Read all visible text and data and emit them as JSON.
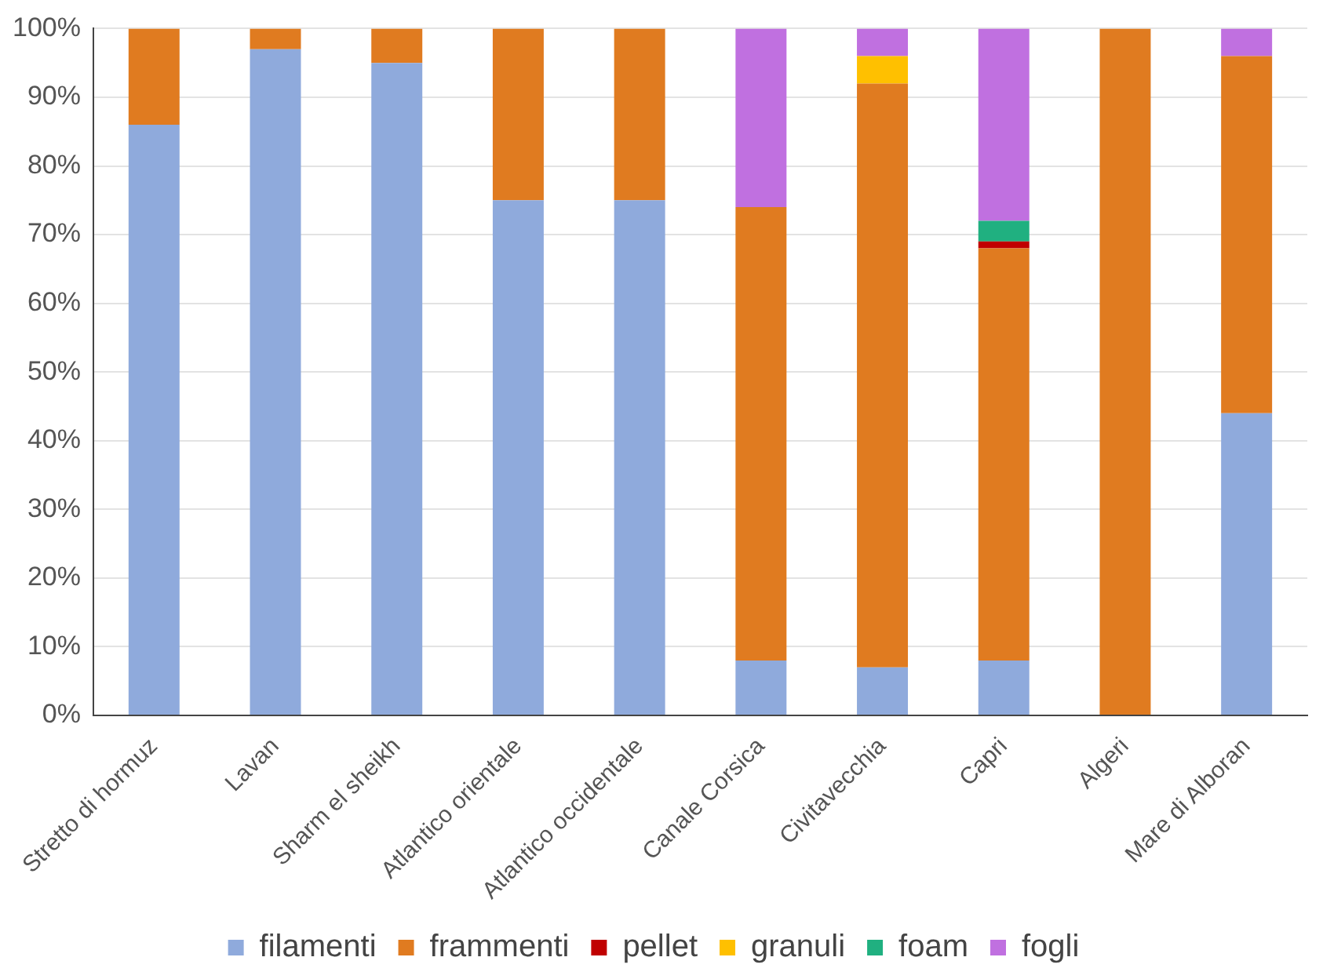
{
  "chart_data": {
    "type": "bar",
    "stacked": true,
    "categories": [
      "Stretto di hormuz",
      "Lavan",
      "Sharm el sheikh",
      "Atlantico orientale",
      "Atlantico occidentale",
      "Canale Corsica",
      "Civitavecchia",
      "Capri",
      "Algeri",
      "Mare di Alboran"
    ],
    "series": [
      {
        "name": "filamenti",
        "color": "#8faadc",
        "values": [
          86,
          97,
          95,
          75,
          75,
          8,
          7,
          8,
          0,
          44
        ]
      },
      {
        "name": "frammenti",
        "color": "#e07b20",
        "values": [
          14,
          3,
          5,
          25,
          25,
          66,
          85,
          60,
          100,
          52
        ]
      },
      {
        "name": "pellet",
        "color": "#c00000",
        "values": [
          0,
          0,
          0,
          0,
          0,
          0,
          0,
          1,
          0,
          0
        ]
      },
      {
        "name": "granuli",
        "color": "#ffc000",
        "values": [
          0,
          0,
          0,
          0,
          0,
          0,
          4,
          0,
          0,
          0
        ]
      },
      {
        "name": "foam",
        "color": "#20b080",
        "values": [
          0,
          0,
          0,
          0,
          0,
          0,
          0,
          3,
          0,
          0
        ]
      },
      {
        "name": "fogli",
        "color": "#c070e0",
        "values": [
          0,
          0,
          0,
          0,
          0,
          26,
          4,
          28,
          0,
          4
        ]
      }
    ],
    "ylim": [
      0,
      100
    ],
    "yticks": [
      {
        "value": 0,
        "label": "0%"
      },
      {
        "value": 10,
        "label": "10%"
      },
      {
        "value": 20,
        "label": "20%"
      },
      {
        "value": 30,
        "label": "30%"
      },
      {
        "value": 40,
        "label": "40%"
      },
      {
        "value": 50,
        "label": "50%"
      },
      {
        "value": 60,
        "label": "60%"
      },
      {
        "value": 70,
        "label": "70%"
      },
      {
        "value": 80,
        "label": "80%"
      },
      {
        "value": 90,
        "label": "90%"
      },
      {
        "value": 100,
        "label": "100%"
      }
    ],
    "grid": "y",
    "legend": "bottom"
  }
}
